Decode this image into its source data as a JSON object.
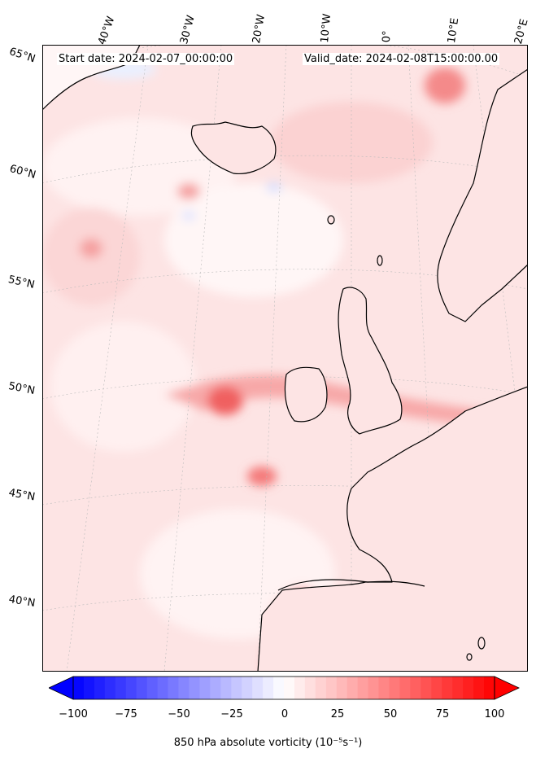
{
  "header": {
    "start_date": "Start date: 2024-02-07_00:00:00",
    "valid_date": "Valid_date: 2024-02-08T15:00:00.00"
  },
  "lon_labels": [
    "40°W",
    "30°W",
    "20°W",
    "10°W",
    "0°",
    "10°E",
    "20°E"
  ],
  "lat_labels": [
    "65°N",
    "60°N",
    "55°N",
    "50°N",
    "45°N",
    "40°N"
  ],
  "colorbar": {
    "label": "850 hPa absolute vorticity (10⁻⁵s⁻¹)",
    "ticks": [
      "−100",
      "−75",
      "−50",
      "−25",
      "0",
      "25",
      "50",
      "75",
      "100"
    ],
    "vmin": -100,
    "vmax": 100,
    "levels": 40,
    "cmap": "bwr",
    "extend": "both"
  },
  "colors": {
    "negative": "#0000ff",
    "neutral": "#ffffff",
    "positive": "#ff0000",
    "coastline": "#000000"
  }
}
